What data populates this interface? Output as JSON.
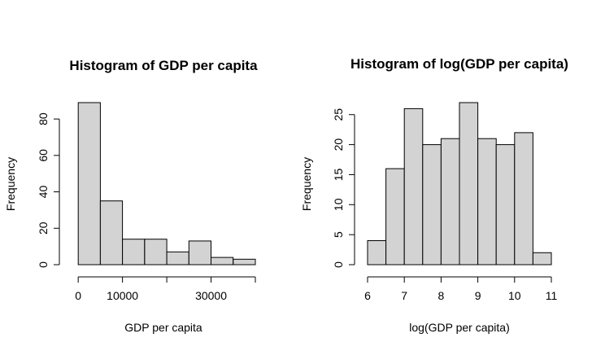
{
  "chart_data": [
    {
      "type": "bar",
      "title": "Histogram of GDP per capita",
      "xlabel": "GDP per capita",
      "ylabel": "Frequency",
      "bins": [
        {
          "from": 0,
          "to": 5000,
          "count": 89
        },
        {
          "from": 5000,
          "to": 10000,
          "count": 35
        },
        {
          "from": 10000,
          "to": 15000,
          "count": 14
        },
        {
          "from": 15000,
          "to": 20000,
          "count": 14
        },
        {
          "from": 20000,
          "to": 25000,
          "count": 7
        },
        {
          "from": 25000,
          "to": 30000,
          "count": 13
        },
        {
          "from": 30000,
          "to": 35000,
          "count": 4
        },
        {
          "from": 35000,
          "to": 40000,
          "count": 3
        }
      ],
      "xlim": [
        -1500,
        40000
      ],
      "ylim": [
        0,
        89
      ],
      "xticks": [
        0,
        10000,
        20000,
        30000,
        40000
      ],
      "xtick_labels": [
        "0",
        "10000",
        "",
        "30000",
        ""
      ],
      "yticks": [
        0,
        20,
        40,
        60,
        80
      ],
      "ytick_labels": [
        "0",
        "20",
        "40",
        "60",
        "80"
      ],
      "grid": false,
      "bar_fill": "#d3d3d3"
    },
    {
      "type": "bar",
      "title": "Histogram of log(GDP per capita)",
      "xlabel": "log(GDP per capita)",
      "ylabel": "Frequency",
      "bins": [
        {
          "from": 6.0,
          "to": 6.5,
          "count": 4
        },
        {
          "from": 6.5,
          "to": 7.0,
          "count": 16
        },
        {
          "from": 7.0,
          "to": 7.5,
          "count": 26
        },
        {
          "from": 7.5,
          "to": 8.0,
          "count": 20
        },
        {
          "from": 8.0,
          "to": 8.5,
          "count": 21
        },
        {
          "from": 8.5,
          "to": 9.0,
          "count": 27
        },
        {
          "from": 9.0,
          "to": 9.5,
          "count": 21
        },
        {
          "from": 9.5,
          "to": 10.0,
          "count": 20
        },
        {
          "from": 10.0,
          "to": 10.5,
          "count": 22
        },
        {
          "from": 10.5,
          "to": 11.0,
          "count": 2
        }
      ],
      "xlim": [
        6.0,
        11.0
      ],
      "ylim": [
        0,
        27
      ],
      "xticks": [
        6,
        7,
        8,
        9,
        10,
        11
      ],
      "xtick_labels": [
        "6",
        "7",
        "8",
        "9",
        "10",
        "11"
      ],
      "yticks": [
        0,
        5,
        10,
        15,
        20,
        25
      ],
      "ytick_labels": [
        "0",
        "5",
        "10",
        "15",
        "20",
        "25"
      ],
      "grid": false,
      "bar_fill": "#d3d3d3"
    }
  ]
}
